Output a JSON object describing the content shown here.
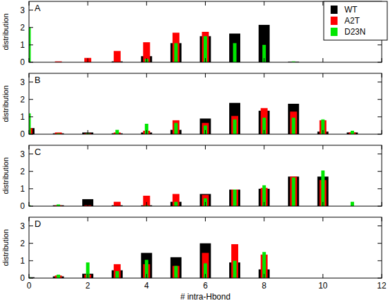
{
  "chart_data": [
    {
      "type": "bar",
      "title": "A",
      "y_label": "distribution",
      "x": [
        0,
        1,
        2,
        3,
        4,
        5,
        6,
        7,
        8,
        9,
        10,
        11
      ],
      "series": [
        {
          "name": "WT",
          "color": "#000000",
          "values": [
            0,
            0,
            0,
            0.05,
            0.35,
            1.1,
            1.5,
            1.65,
            2.15,
            0.03,
            0,
            0
          ]
        },
        {
          "name": "A2T",
          "color": "#ff0000",
          "values": [
            0,
            0.05,
            0.25,
            0.65,
            1.15,
            1.7,
            1.75,
            0,
            0,
            0,
            0,
            0
          ]
        },
        {
          "name": "D23N",
          "color": "#00e600",
          "values": [
            2.0,
            0,
            0,
            0,
            0.2,
            1.1,
            1.5,
            1.1,
            1.0,
            0.05,
            0,
            0
          ]
        }
      ],
      "xlim": [
        0,
        12
      ],
      "xticks": [
        0,
        2,
        4,
        6,
        8,
        10,
        12
      ],
      "ylim": [
        0,
        3.5
      ],
      "yticks": [
        0,
        1,
        2,
        3
      ],
      "tick_labels": "y",
      "legend": "upper right"
    },
    {
      "type": "bar",
      "title": "B",
      "y_label": "distribution",
      "x": [
        0,
        1,
        2,
        3,
        4,
        5,
        6,
        7,
        8,
        9,
        10,
        11
      ],
      "series": [
        {
          "name": "WT",
          "color": "#000000",
          "values": [
            0.35,
            0.05,
            0.1,
            0.05,
            0.1,
            0.25,
            0.9,
            1.8,
            1.35,
            1.75,
            0.15,
            0.1
          ]
        },
        {
          "name": "A2T",
          "color": "#ff0000",
          "values": [
            0.35,
            0.1,
            0.05,
            0.1,
            0.2,
            0.8,
            0.65,
            1.05,
            1.5,
            1.3,
            0.8,
            0.1
          ]
        },
        {
          "name": "D23N",
          "color": "#00e600",
          "values": [
            1.2,
            0.05,
            0.05,
            0.25,
            0.6,
            0.65,
            0.5,
            0.85,
            0.95,
            0.95,
            0.85,
            0.2
          ]
        }
      ],
      "xlim": [
        0,
        12
      ],
      "xticks": [
        0,
        2,
        4,
        6,
        8,
        10,
        12
      ],
      "ylim": [
        0,
        3.5
      ],
      "yticks": [
        0,
        1,
        2,
        3
      ],
      "tick_labels": "y"
    },
    {
      "type": "bar",
      "title": "C",
      "y_label": "distribution",
      "x": [
        0,
        1,
        2,
        3,
        4,
        5,
        6,
        7,
        8,
        9,
        10,
        11
      ],
      "series": [
        {
          "name": "WT",
          "color": "#000000",
          "values": [
            0,
            0.05,
            0.4,
            0.05,
            0.05,
            0.25,
            0.7,
            0.95,
            1.0,
            1.7,
            1.7,
            0
          ]
        },
        {
          "name": "A2T",
          "color": "#ff0000",
          "values": [
            0,
            0.05,
            0.05,
            0.25,
            0.6,
            0.7,
            0.65,
            0.95,
            1.05,
            1.7,
            1.5,
            0
          ]
        },
        {
          "name": "D23N",
          "color": "#00e600",
          "values": [
            0.05,
            0.1,
            0,
            0,
            0.05,
            0.25,
            0.45,
            0.95,
            1.2,
            1.65,
            2.05,
            0.25
          ]
        }
      ],
      "xlim": [
        0,
        12
      ],
      "xticks": [
        0,
        2,
        4,
        6,
        8,
        10,
        12
      ],
      "ylim": [
        0,
        3.5
      ],
      "yticks": [
        0,
        1,
        2,
        3
      ],
      "tick_labels": "y"
    },
    {
      "type": "bar",
      "title": "D",
      "y_label": "distribution",
      "x_label": "# intra-Hbond",
      "x": [
        0,
        1,
        2,
        3,
        4,
        5,
        6,
        7,
        8,
        9,
        10,
        11
      ],
      "series": [
        {
          "name": "WT",
          "color": "#000000",
          "values": [
            0.05,
            0.1,
            0.25,
            0.45,
            1.45,
            1.2,
            2.0,
            0.9,
            0.5,
            0,
            0,
            0
          ]
        },
        {
          "name": "A2T",
          "color": "#ff0000",
          "values": [
            0,
            0.15,
            0.2,
            0.8,
            0.8,
            0.7,
            1.45,
            1.95,
            1.35,
            0,
            0,
            0
          ]
        },
        {
          "name": "D23N",
          "color": "#00e600",
          "values": [
            0.05,
            0.2,
            0.9,
            0.4,
            1.05,
            0.7,
            0.85,
            1.0,
            1.5,
            0,
            0,
            0
          ]
        }
      ],
      "xlim": [
        0,
        12
      ],
      "xticks": [
        0,
        2,
        4,
        6,
        8,
        10,
        12
      ],
      "ylim": [
        0,
        3.5
      ],
      "yticks": [
        0,
        1,
        2,
        3
      ]
    }
  ]
}
